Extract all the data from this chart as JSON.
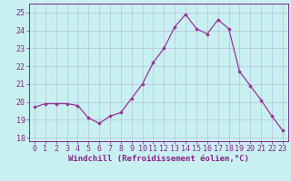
{
  "x": [
    0,
    1,
    2,
    3,
    4,
    5,
    6,
    7,
    8,
    9,
    10,
    11,
    12,
    13,
    14,
    15,
    16,
    17,
    18,
    19,
    20,
    21,
    22,
    23
  ],
  "y": [
    19.7,
    19.9,
    19.9,
    19.9,
    19.8,
    19.1,
    18.8,
    19.2,
    19.4,
    20.2,
    21.0,
    22.2,
    23.0,
    24.2,
    24.9,
    24.1,
    23.8,
    24.6,
    24.1,
    21.7,
    20.9,
    20.1,
    19.2,
    18.4
  ],
  "line_color": "#993399",
  "marker": "D",
  "marker_size": 1.8,
  "line_width": 0.9,
  "bg_color": "#c8f0f0",
  "grid_color": "#b0a0d0",
  "xlabel": "Windchill (Refroidissement éolien,°C)",
  "xlabel_fontsize": 6.5,
  "ylabel_ticks": [
    18,
    19,
    20,
    21,
    22,
    23,
    24,
    25
  ],
  "xtick_labels": [
    "0",
    "1",
    "2",
    "3",
    "4",
    "5",
    "6",
    "7",
    "8",
    "9",
    "10",
    "11",
    "12",
    "13",
    "14",
    "15",
    "16",
    "17",
    "18",
    "19",
    "20",
    "21",
    "22",
    "23"
  ],
  "ylim": [
    17.8,
    25.5
  ],
  "xlim": [
    -0.5,
    23.5
  ],
  "tick_fontsize": 6.0,
  "label_color": "#882288"
}
